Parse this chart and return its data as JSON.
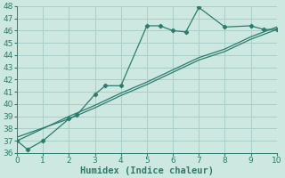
{
  "title": "",
  "xlabel": "Humidex (Indice chaleur)",
  "ylabel": "",
  "bg_color": "#cce8e0",
  "line_color": "#2e7b6e",
  "grid_color": "#aacfc8",
  "x_main": [
    0,
    0.4,
    1,
    2,
    2.3,
    3,
    3.4,
    4,
    5,
    5.5,
    6,
    6.5,
    7,
    8,
    9,
    9.5,
    10
  ],
  "y_main": [
    37.0,
    36.3,
    37.0,
    38.8,
    39.1,
    40.8,
    41.5,
    41.5,
    46.4,
    46.4,
    46.0,
    45.9,
    47.9,
    46.3,
    46.4,
    46.1,
    46.1
  ],
  "x_trend1": [
    0,
    2,
    3,
    4,
    5,
    6,
    7,
    8,
    9,
    10
  ],
  "y_trend1": [
    37.3,
    38.8,
    39.7,
    40.7,
    41.6,
    42.6,
    43.6,
    44.3,
    45.3,
    46.1
  ],
  "x_trend2": [
    0,
    2,
    3,
    4,
    5,
    6,
    7,
    8,
    9,
    10
  ],
  "y_trend2": [
    37.0,
    39.0,
    39.9,
    40.9,
    41.8,
    42.8,
    43.8,
    44.5,
    45.5,
    46.3
  ],
  "xlim": [
    0,
    10
  ],
  "ylim": [
    36,
    48
  ],
  "xticks": [
    0,
    1,
    2,
    3,
    4,
    5,
    6,
    7,
    8,
    9,
    10
  ],
  "yticks": [
    36,
    37,
    38,
    39,
    40,
    41,
    42,
    43,
    44,
    45,
    46,
    47,
    48
  ],
  "xlabel_fontsize": 7.5,
  "tick_fontsize": 6.5,
  "linewidth": 0.9,
  "marker": "D",
  "markersize": 2.2
}
